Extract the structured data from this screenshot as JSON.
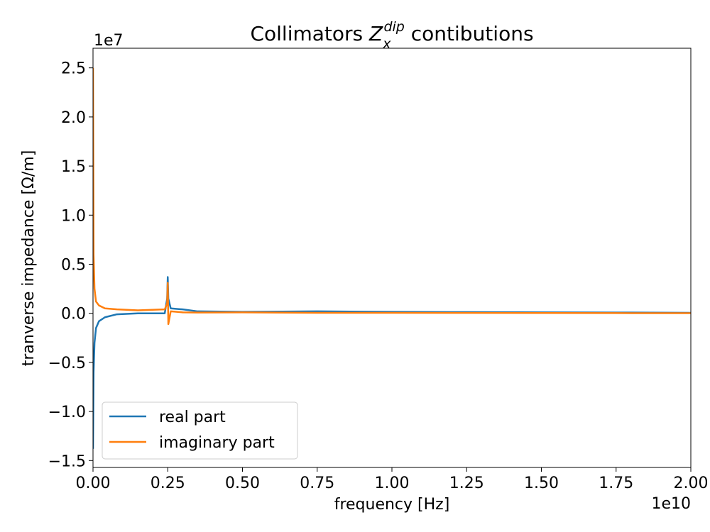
{
  "chart_data": {
    "type": "line",
    "title_main": "Collimators ",
    "title_z": "Z",
    "title_sub": "x",
    "title_sup": "dip",
    "title_tail": " contibutions",
    "xlabel": "frequency [Hz]",
    "ylabel": "tranverse impedance [Ω/m]",
    "x_offset_text": "1e10",
    "y_offset_text": "1e7",
    "xlim": [
      0,
      2.0
    ],
    "ylim": [
      -1.57,
      2.7
    ],
    "x_scale_multiplier": "1e10",
    "y_scale_multiplier": "1e7",
    "x_ticks": [
      0.0,
      0.25,
      0.5,
      0.75,
      1.0,
      1.25,
      1.5,
      1.75,
      2.0
    ],
    "x_tick_labels": [
      "0.00",
      "0.25",
      "0.50",
      "0.75",
      "1.00",
      "1.25",
      "1.50",
      "1.75",
      "2.00"
    ],
    "y_ticks": [
      -1.5,
      -1.0,
      -0.5,
      0.0,
      0.5,
      1.0,
      1.5,
      2.0,
      2.5
    ],
    "y_tick_labels": [
      "−1.5",
      "−1.0",
      "−0.5",
      "0.0",
      "0.5",
      "1.0",
      "1.5",
      "2.0",
      "2.5"
    ],
    "grid": false,
    "legend_position": "lower-left",
    "series": [
      {
        "name": "real part",
        "color": "#1f77b4",
        "x": [
          0.0,
          0.002,
          0.005,
          0.01,
          0.02,
          0.04,
          0.08,
          0.15,
          0.24,
          0.248,
          0.25,
          0.252,
          0.26,
          0.3,
          0.35,
          0.5,
          0.75,
          1.0,
          1.25,
          1.5,
          1.75,
          2.0
        ],
        "y": [
          -1.38,
          -0.6,
          -0.3,
          -0.15,
          -0.08,
          -0.04,
          -0.01,
          0.0,
          0.0,
          0.15,
          0.37,
          0.15,
          0.05,
          0.04,
          0.02,
          0.015,
          0.02,
          0.015,
          0.012,
          0.01,
          0.008,
          0.005
        ]
      },
      {
        "name": "imaginary part",
        "color": "#ff7f0e",
        "x": [
          0.0,
          0.002,
          0.005,
          0.01,
          0.02,
          0.04,
          0.08,
          0.15,
          0.24,
          0.248,
          0.25,
          0.252,
          0.26,
          0.3,
          0.35,
          0.5,
          0.75,
          1.0,
          1.25,
          1.5,
          1.75,
          2.0
        ],
        "y": [
          2.5,
          0.6,
          0.25,
          0.12,
          0.08,
          0.05,
          0.04,
          0.03,
          0.04,
          0.1,
          0.31,
          -0.11,
          0.02,
          0.01,
          0.008,
          0.01,
          0.005,
          0.005,
          0.004,
          0.003,
          0.002,
          0.001
        ]
      }
    ]
  }
}
